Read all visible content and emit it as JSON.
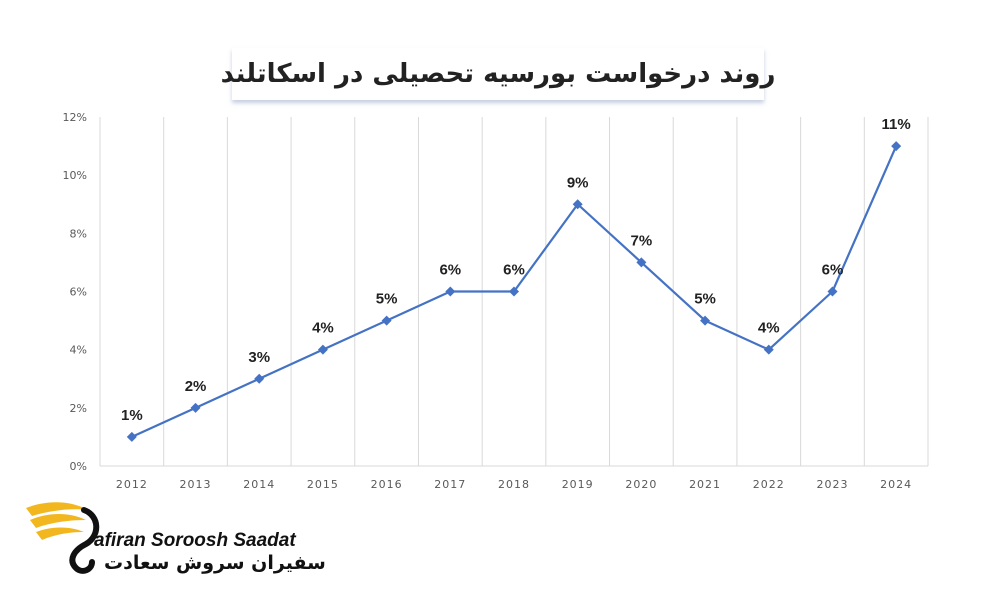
{
  "title": "روند درخواست بورسیه تحصیلی در اسکاتلند",
  "brand": {
    "name_en": "afiran Soroosh Saadat",
    "name_fa": "سفیران سروش سعادت",
    "gold": "#f2b71e",
    "dark": "#111111"
  },
  "colors": {
    "line": "#4472c4",
    "grid": "#d9d9d9",
    "axis_text": "#595959",
    "label_text": "#222222"
  },
  "chart_data": {
    "type": "line",
    "title": "روند درخواست بورسیه تحصیلی در اسکاتلند",
    "x": [
      "2012",
      "2013",
      "2014",
      "2015",
      "2016",
      "2017",
      "2018",
      "2019",
      "2020",
      "2021",
      "2022",
      "2023",
      "2024"
    ],
    "series": [
      {
        "values": [
          1,
          2,
          3,
          4,
          5,
          6,
          6,
          9,
          7,
          5,
          4,
          6,
          11
        ]
      }
    ],
    "data_labels": [
      "1%",
      "2%",
      "3%",
      "4%",
      "5%",
      "6%",
      "6%",
      "9%",
      "7%",
      "5%",
      "4%",
      "6%",
      "11%"
    ],
    "y_ticks": [
      "0%",
      "2%",
      "4%",
      "6%",
      "8%",
      "10%",
      "12%"
    ],
    "ylim": [
      0,
      12
    ],
    "xlabel": "",
    "ylabel": "",
    "grid": "vertical",
    "marker": "diamond",
    "legend": "none"
  }
}
